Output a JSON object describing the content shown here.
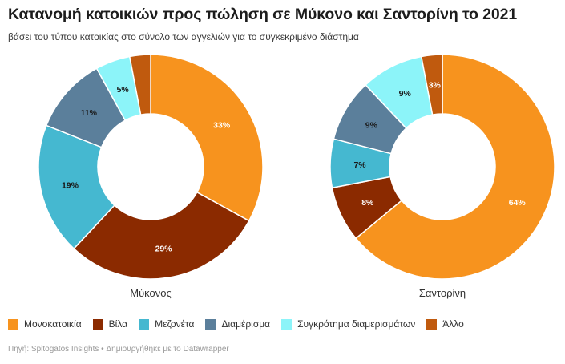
{
  "header": {
    "title": "Κατανομή κατοικιών προς πώληση σε Μύκονο και Σαντορίνη το 2021",
    "subtitle": "βάσει του τύπου κατοικίας στο σύνολο των αγγελιών για το συγκεκριμένο διάστημα"
  },
  "legend": [
    {
      "label": "Μονοκατοικία",
      "color": "#f7931e"
    },
    {
      "label": "Βίλα",
      "color": "#8b2a00"
    },
    {
      "label": "Μεζονέτα",
      "color": "#45b8d0"
    },
    {
      "label": "Διαμέρισμα",
      "color": "#5b7f9b"
    },
    {
      "label": "Συγκρότημα διαμερισμάτων",
      "color": "#8cf4f9"
    },
    {
      "label": "Άλλο",
      "color": "#c05a0e"
    }
  ],
  "chart_data": [
    {
      "type": "pie",
      "title": "Μύκονος",
      "categories": [
        "Μονοκατοικία",
        "Βίλα",
        "Μεζονέτα",
        "Διαμέρισμα",
        "Συγκρότημα διαμερισμάτων",
        "Άλλο"
      ],
      "values": [
        33,
        29,
        19,
        11,
        5,
        3
      ],
      "labels": [
        "33%",
        "29%",
        "19%",
        "11%",
        "5%",
        ""
      ]
    },
    {
      "type": "pie",
      "title": "Σαντορίνη",
      "categories": [
        "Μονοκατοικία",
        "Βίλα",
        "Μεζονέτα",
        "Διαμέρισμα",
        "Συγκρότημα διαμερισμάτων",
        "Άλλο"
      ],
      "values": [
        64,
        8,
        7,
        9,
        9,
        3
      ],
      "labels": [
        "64%",
        "8%",
        "7%",
        "9%",
        "9%",
        "3%"
      ]
    }
  ],
  "footer": {
    "source": "Πηγή: Spitogatos Insights • Δημιουργήθηκε με το Datawrapper"
  }
}
